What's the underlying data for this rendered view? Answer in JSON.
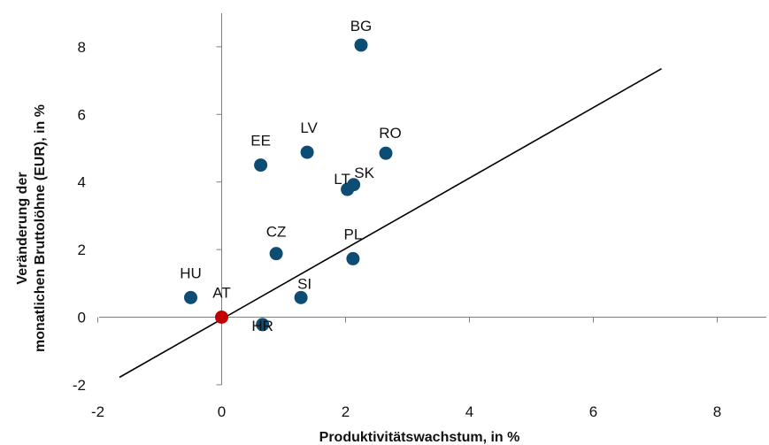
{
  "chart_data": {
    "type": "scatter",
    "xlabel": "Produktivitätswachstum, in %",
    "ylabel_line1": "Veränderung der",
    "ylabel_line2": "monatlichen Bruttolöhne (EUR), in %",
    "xlim": [
      -2,
      9
    ],
    "ylim": [
      -2,
      9
    ],
    "xticks": [
      -2,
      0,
      2,
      4,
      6,
      8
    ],
    "yticks": [
      -2,
      0,
      2,
      4,
      6,
      8
    ],
    "grid": false,
    "colors": {
      "point": "#0d4d73",
      "highlight": "#c00000",
      "line": "#000000",
      "axis": "#7f7f7f"
    },
    "points": [
      {
        "label": "BG",
        "x": 2.25,
        "y": 8.05
      },
      {
        "label": "RO",
        "x": 2.65,
        "y": 4.85
      },
      {
        "label": "LV",
        "x": 1.38,
        "y": 4.88
      },
      {
        "label": "EE",
        "x": 0.63,
        "y": 4.5
      },
      {
        "label": "SK",
        "x": 2.13,
        "y": 3.92
      },
      {
        "label": "LT",
        "x": 2.03,
        "y": 3.78
      },
      {
        "label": "CZ",
        "x": 0.88,
        "y": 1.88
      },
      {
        "label": "PL",
        "x": 2.12,
        "y": 1.73
      },
      {
        "label": "HU",
        "x": -0.5,
        "y": 0.58
      },
      {
        "label": "SI",
        "x": 1.28,
        "y": 0.58
      },
      {
        "label": "HR",
        "x": 0.66,
        "y": -0.22
      },
      {
        "label": "AT",
        "x": 0.0,
        "y": 0.0,
        "highlight": true
      }
    ],
    "trendline": {
      "x": [
        -1.65,
        7.1
      ],
      "y": [
        -1.78,
        7.35
      ]
    }
  }
}
